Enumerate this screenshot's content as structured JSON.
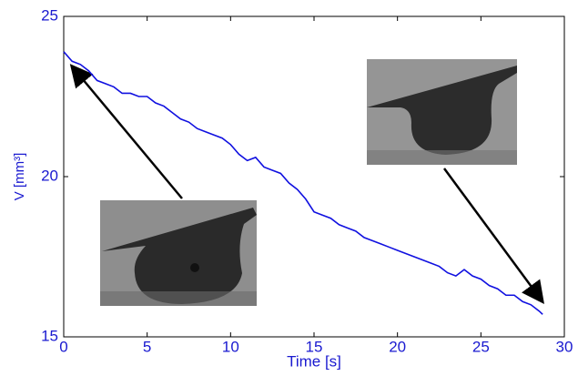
{
  "chart_data": {
    "type": "line",
    "x_label": "Time [s]",
    "y_label": "V [mm³]",
    "xlim": [
      0,
      30
    ],
    "xticks": [
      0,
      5,
      10,
      15,
      20,
      25,
      30
    ],
    "ylim": [
      15,
      25
    ],
    "yticks": [
      15,
      20,
      25
    ],
    "series": [
      {
        "color": "#1010e0",
        "x": [
          0,
          0.5,
          1,
          1.5,
          2,
          2.5,
          3,
          3.5,
          4,
          4.5,
          5,
          5.5,
          6,
          6.5,
          7,
          7.5,
          8,
          8.5,
          9,
          9.5,
          10,
          10.5,
          11,
          11.5,
          12,
          12.5,
          13,
          13.5,
          14,
          14.5,
          15,
          15.5,
          16,
          16.5,
          17,
          17.5,
          18,
          18.5,
          19,
          19.5,
          20,
          20.5,
          21,
          21.5,
          22,
          22.5,
          23,
          23.5,
          24,
          24.5,
          25,
          25.5,
          26,
          26.5,
          27,
          27.5,
          28,
          28.5,
          28.7
        ],
        "values": [
          23.9,
          23.6,
          23.5,
          23.3,
          23.0,
          22.9,
          22.8,
          22.6,
          22.6,
          22.5,
          22.5,
          22.3,
          22.2,
          22.0,
          21.8,
          21.7,
          21.5,
          21.4,
          21.3,
          21.2,
          21.0,
          20.7,
          20.5,
          20.6,
          20.3,
          20.2,
          20.1,
          19.8,
          19.6,
          19.3,
          18.9,
          18.8,
          18.7,
          18.5,
          18.4,
          18.3,
          18.1,
          18.0,
          17.9,
          17.8,
          17.7,
          17.6,
          17.5,
          17.4,
          17.3,
          17.2,
          17.0,
          16.9,
          17.1,
          16.9,
          16.8,
          16.6,
          16.5,
          16.3,
          16.3,
          16.1,
          16.0,
          15.8,
          15.7
        ]
      }
    ]
  }
}
